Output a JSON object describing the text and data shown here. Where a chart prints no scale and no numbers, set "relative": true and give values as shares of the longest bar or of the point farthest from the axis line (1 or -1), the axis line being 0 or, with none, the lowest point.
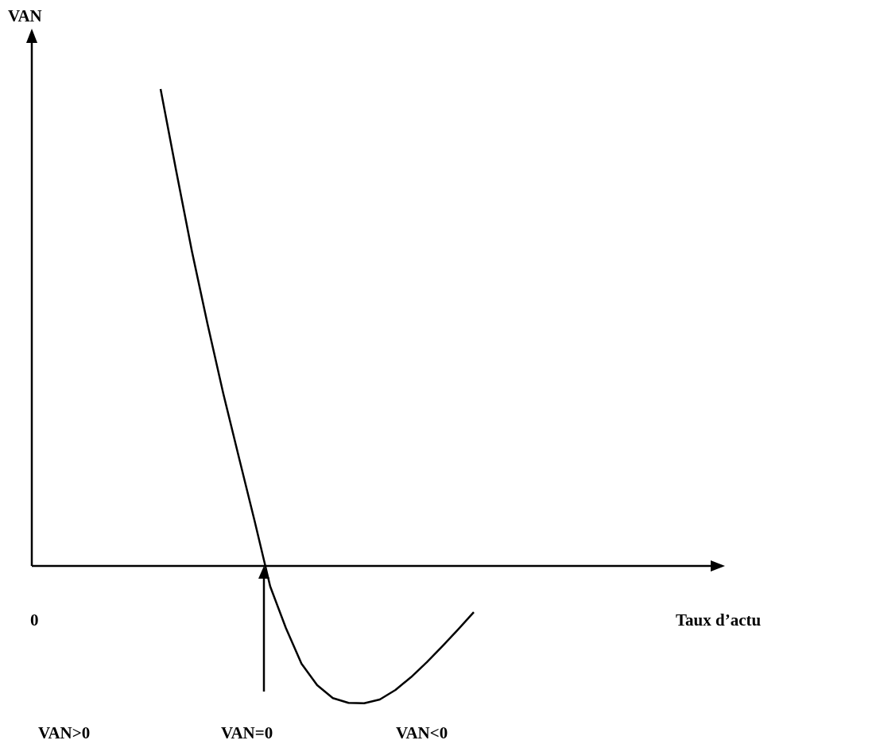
{
  "chart_data": {
    "type": "line",
    "relative": true,
    "annotations": [
      "VAN",
      "Taux d’actu",
      "0",
      "VAN>0",
      "VAN=0",
      "VAN<0"
    ],
    "categories": [
      null,
      null,
      null,
      null,
      null,
      null,
      null,
      null,
      null,
      null,
      null,
      null,
      null,
      null,
      null,
      null,
      null,
      null,
      null,
      null,
      null
    ],
    "series": [
      {
        "color": "#000000",
        "values": [
          1,
          0.828,
          0.66,
          0.507,
          0.362,
          0.228,
          0.095,
          -0.043,
          -0.13,
          -0.205,
          -0.25,
          -0.277,
          -0.287,
          -0.288,
          -0.28,
          -0.26,
          -0.233,
          -0.202,
          -0.168,
          -0.133,
          -0.097
        ]
      }
    ]
  }
}
